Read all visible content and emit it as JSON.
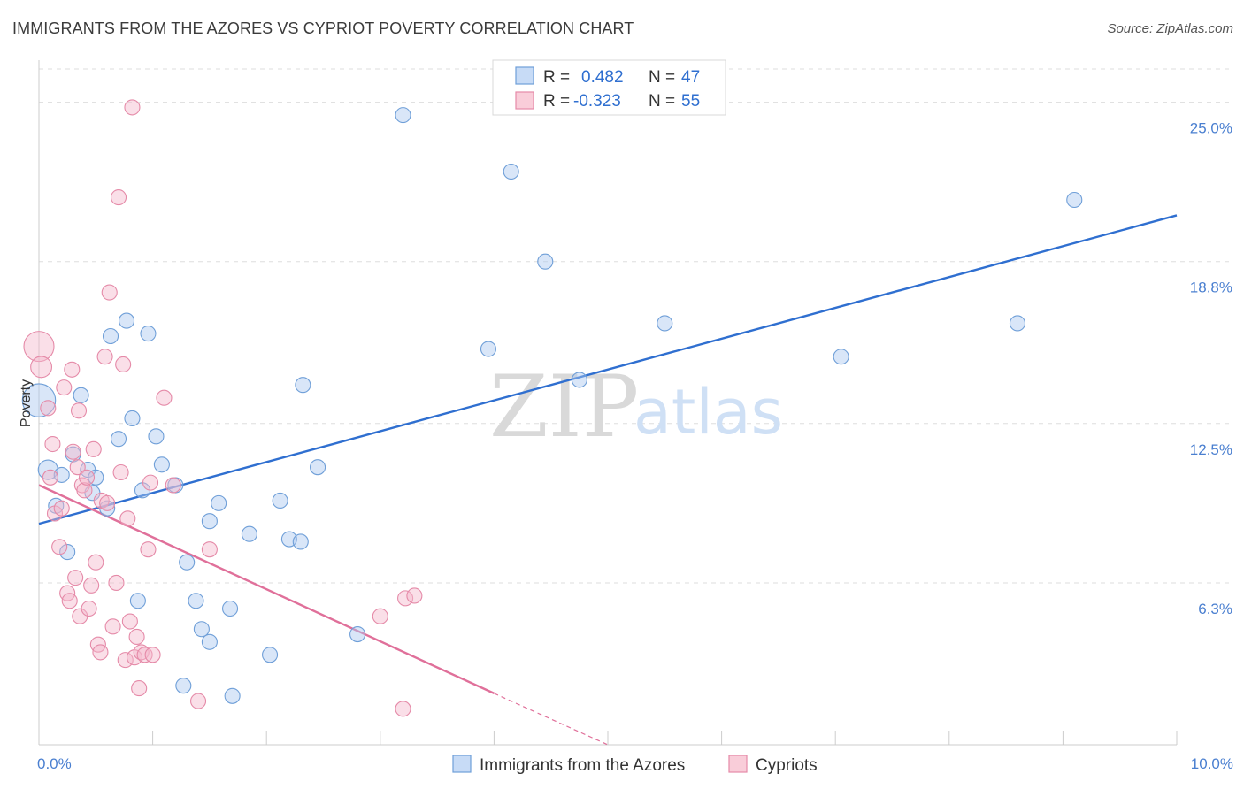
{
  "title": "IMMIGRANTS FROM THE AZORES VS CYPRIOT POVERTY CORRELATION CHART",
  "source": "Source: ZipAtlas.com",
  "watermark": {
    "part1": "ZIP",
    "part2": "atlas"
  },
  "colors": {
    "blue_fill": "#aac8ef",
    "blue_stroke": "#6f9fd8",
    "blue_line": "#2f6fd0",
    "pink_fill": "#f5b8cb",
    "pink_stroke": "#e58aa8",
    "pink_line": "#e0709a",
    "grid": "#dddddd",
    "axis": "#cccccc",
    "tick_text": "#4a7fd0"
  },
  "stats_legend": [
    {
      "r_label": "R =",
      "r_value": "0.482",
      "n_label": "N =",
      "n_value": "47"
    },
    {
      "r_label": "R =",
      "r_value": "-0.323",
      "n_label": "N =",
      "n_value": "55"
    }
  ],
  "chart_data": {
    "type": "scatter",
    "title": "IMMIGRANTS FROM THE AZORES VS CYPRIOT POVERTY CORRELATION CHART",
    "xlabel": "",
    "ylabel": "Poverty",
    "xlim": [
      0,
      10
    ],
    "ylim": [
      0,
      26.5
    ],
    "x_tick_labels": [
      {
        "value": 0,
        "label": "0.0%"
      },
      {
        "value": 10,
        "label": "10.0%"
      }
    ],
    "x_minor_ticks": [
      1,
      2,
      3,
      4,
      5,
      6,
      7,
      8,
      9,
      10
    ],
    "y_tick_labels": [
      {
        "value": 6.3,
        "label": "6.3%"
      },
      {
        "value": 12.5,
        "label": "12.5%"
      },
      {
        "value": 18.8,
        "label": "18.8%"
      },
      {
        "value": 25.0,
        "label": "25.0%"
      }
    ],
    "grid": true,
    "legend_position": "top-center",
    "series": [
      {
        "name": "Immigrants from the Azores",
        "color": "blue",
        "trend": {
          "x0": 0.0,
          "y0": 8.6,
          "x1": 10.0,
          "y1": 20.6
        },
        "points": [
          [
            0.0,
            13.4,
            2.2
          ],
          [
            0.08,
            10.7,
            1.3
          ],
          [
            0.15,
            9.3,
            1
          ],
          [
            0.2,
            10.5,
            1
          ],
          [
            0.25,
            7.5,
            1
          ],
          [
            0.3,
            11.3,
            1
          ],
          [
            0.37,
            13.6,
            1
          ],
          [
            0.43,
            10.7,
            1
          ],
          [
            0.47,
            9.8,
            1
          ],
          [
            0.5,
            10.4,
            1
          ],
          [
            0.6,
            9.2,
            1
          ],
          [
            0.63,
            15.9,
            1
          ],
          [
            0.7,
            11.9,
            1
          ],
          [
            0.77,
            16.5,
            1
          ],
          [
            0.82,
            12.7,
            1
          ],
          [
            0.87,
            5.6,
            1
          ],
          [
            0.91,
            9.9,
            1
          ],
          [
            0.96,
            16.0,
            1
          ],
          [
            1.03,
            12.0,
            1
          ],
          [
            1.08,
            10.9,
            1
          ],
          [
            1.2,
            10.1,
            1
          ],
          [
            1.3,
            7.1,
            1
          ],
          [
            1.38,
            5.6,
            1
          ],
          [
            1.43,
            4.5,
            1
          ],
          [
            1.5,
            8.7,
            1
          ],
          [
            1.58,
            9.4,
            1
          ],
          [
            1.68,
            5.3,
            1
          ],
          [
            1.85,
            8.2,
            1
          ],
          [
            2.03,
            3.5,
            1
          ],
          [
            2.12,
            9.5,
            1
          ],
          [
            2.2,
            8.0,
            1
          ],
          [
            2.32,
            14.0,
            1
          ],
          [
            2.45,
            10.8,
            1
          ],
          [
            2.8,
            4.3,
            1
          ],
          [
            3.2,
            24.5,
            1
          ],
          [
            3.95,
            15.4,
            1
          ],
          [
            4.15,
            22.3,
            1
          ],
          [
            4.45,
            18.8,
            1
          ],
          [
            4.75,
            14.2,
            1
          ],
          [
            5.5,
            16.4,
            1
          ],
          [
            7.05,
            15.1,
            1
          ],
          [
            8.6,
            16.4,
            1
          ],
          [
            9.1,
            21.2,
            1
          ],
          [
            1.7,
            1.9,
            1
          ],
          [
            2.3,
            7.9,
            1
          ],
          [
            1.5,
            4.0,
            1
          ],
          [
            1.27,
            2.3,
            1
          ]
        ]
      },
      {
        "name": "Cypriots",
        "color": "pink",
        "trend": {
          "x0": 0.0,
          "y0": 10.1,
          "x1": 4.0,
          "y1": 2.0
        },
        "trend_extension": {
          "x0": 4.0,
          "y0": 2.0,
          "x1": 5.0,
          "y1": 0.0
        },
        "points": [
          [
            0.0,
            15.5,
            2.0
          ],
          [
            0.02,
            14.7,
            1.4
          ],
          [
            0.08,
            13.1,
            1
          ],
          [
            0.1,
            10.4,
            1
          ],
          [
            0.12,
            11.7,
            1
          ],
          [
            0.14,
            9.0,
            1
          ],
          [
            0.18,
            7.7,
            1
          ],
          [
            0.2,
            9.2,
            1
          ],
          [
            0.22,
            13.9,
            1
          ],
          [
            0.25,
            5.9,
            1
          ],
          [
            0.27,
            5.6,
            1
          ],
          [
            0.29,
            14.6,
            1
          ],
          [
            0.3,
            11.4,
            1
          ],
          [
            0.32,
            6.5,
            1
          ],
          [
            0.34,
            10.8,
            1
          ],
          [
            0.36,
            5.0,
            1
          ],
          [
            0.38,
            10.1,
            1
          ],
          [
            0.4,
            9.9,
            1
          ],
          [
            0.42,
            10.4,
            1
          ],
          [
            0.44,
            5.3,
            1
          ],
          [
            0.46,
            6.2,
            1
          ],
          [
            0.48,
            11.5,
            1
          ],
          [
            0.5,
            7.1,
            1
          ],
          [
            0.52,
            3.9,
            1
          ],
          [
            0.54,
            3.6,
            1
          ],
          [
            0.55,
            9.5,
            1
          ],
          [
            0.58,
            15.1,
            1
          ],
          [
            0.6,
            9.4,
            1
          ],
          [
            0.62,
            17.6,
            1
          ],
          [
            0.65,
            4.6,
            1
          ],
          [
            0.68,
            6.3,
            1
          ],
          [
            0.7,
            21.3,
            1
          ],
          [
            0.72,
            10.6,
            1
          ],
          [
            0.74,
            14.8,
            1
          ],
          [
            0.76,
            3.3,
            1
          ],
          [
            0.78,
            8.8,
            1
          ],
          [
            0.8,
            4.8,
            1
          ],
          [
            0.82,
            24.8,
            1
          ],
          [
            0.84,
            3.4,
            1
          ],
          [
            0.86,
            4.2,
            1
          ],
          [
            0.88,
            2.2,
            1
          ],
          [
            0.9,
            3.6,
            1
          ],
          [
            0.93,
            3.5,
            1
          ],
          [
            0.96,
            7.6,
            1
          ],
          [
            0.98,
            10.2,
            1
          ],
          [
            1.0,
            3.5,
            1
          ],
          [
            1.1,
            13.5,
            1
          ],
          [
            1.18,
            10.1,
            1
          ],
          [
            1.4,
            1.7,
            1
          ],
          [
            1.5,
            7.6,
            1
          ],
          [
            3.0,
            5.0,
            1
          ],
          [
            3.22,
            5.7,
            1
          ],
          [
            3.3,
            5.8,
            1
          ],
          [
            3.2,
            1.4,
            1
          ],
          [
            0.35,
            13.0,
            1
          ]
        ]
      }
    ]
  }
}
